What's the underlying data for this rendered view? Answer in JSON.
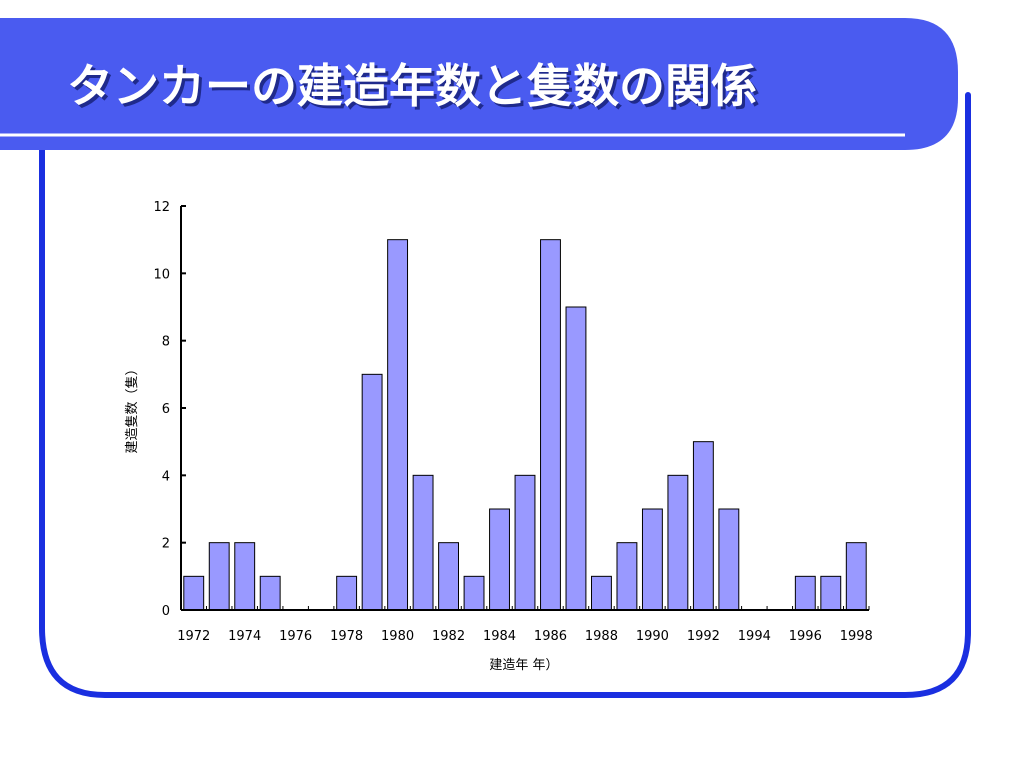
{
  "slide": {
    "title": "タンカーの建造年数と隻数の関係"
  },
  "colors": {
    "title_band": "#4a5bf0",
    "frame": "#1a2fe0",
    "bar_fill": "#9999ff",
    "bar_stroke": "#000000"
  },
  "chart_data": {
    "type": "bar",
    "categories": [
      "1972",
      "1973",
      "1974",
      "1975",
      "1976",
      "1977",
      "1978",
      "1979",
      "1980",
      "1981",
      "1982",
      "1983",
      "1984",
      "1985",
      "1986",
      "1987",
      "1988",
      "1989",
      "1990",
      "1991",
      "1992",
      "1993",
      "1994",
      "1995",
      "1996",
      "1997",
      "1998"
    ],
    "values": [
      1,
      2,
      2,
      1,
      0,
      0,
      1,
      7,
      11,
      4,
      2,
      1,
      3,
      4,
      11,
      9,
      1,
      2,
      3,
      4,
      5,
      3,
      0,
      0,
      1,
      1,
      2
    ],
    "x_tick_labels": [
      "1972",
      "1974",
      "1976",
      "1978",
      "1980",
      "1982",
      "1984",
      "1986",
      "1988",
      "1990",
      "1992",
      "1994",
      "1996",
      "1998"
    ],
    "y_ticks": [
      0,
      2,
      4,
      6,
      8,
      10,
      12
    ],
    "xlabel": "建造年 年）",
    "ylabel": "建造隻数（隻）",
    "ylim": [
      0,
      12
    ],
    "grid": false,
    "legend": "none"
  }
}
